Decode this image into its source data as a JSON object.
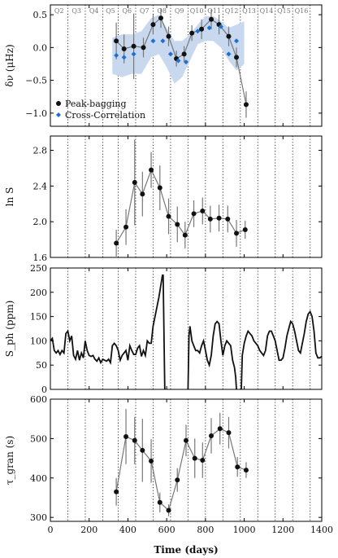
{
  "figure": {
    "xlabel_html": "Time (days)",
    "x_ticks": [
      0,
      200,
      400,
      600,
      800,
      1000,
      1200,
      1400
    ]
  },
  "quarters": {
    "labels": [
      "Q2",
      "Q3",
      "Q4",
      "Q5",
      "Q6",
      "Q7",
      "Q8",
      "Q9",
      "Q10",
      "Q11",
      "Q12",
      "Q13",
      "Q14",
      "Q15",
      "Q16"
    ],
    "boundaries": [
      0,
      90,
      180,
      270,
      350,
      440,
      530,
      620,
      710,
      800,
      890,
      980,
      1070,
      1160,
      1250,
      1340
    ]
  },
  "colors": {
    "peak": "#111111",
    "line": "#777777",
    "cc": "#1f6fcf",
    "band": "#c8d8ef",
    "grid": "#222222"
  },
  "chart_data": [
    {
      "type": "scatter",
      "id": "dnu",
      "ylabel": "δν (μHz)",
      "ylim": [
        -1.2,
        0.65
      ],
      "yticks": [
        -1.0,
        -0.5,
        0.0,
        0.5
      ],
      "ytick_labels": [
        "−1.0",
        "−0.5",
        "0.0",
        "0.5"
      ],
      "legend": {
        "position": "lower-left",
        "entries": [
          "Peak-bagging",
          "Cross-Correlation"
        ]
      },
      "series": [
        {
          "name": "Peak-bagging",
          "x": [
            340,
            380,
            430,
            480,
            530,
            570,
            610,
            650,
            690,
            730,
            780,
            830,
            870,
            920,
            960,
            1010
          ],
          "y": [
            0.1,
            -0.02,
            0.02,
            0.0,
            0.35,
            0.45,
            0.17,
            -0.17,
            -0.1,
            0.22,
            0.28,
            0.43,
            0.35,
            0.17,
            -0.15,
            -0.87
          ],
          "yerr": [
            0.28,
            0.22,
            0.5,
            0.15,
            0.15,
            0.15,
            0.15,
            0.12,
            0.12,
            0.12,
            0.15,
            0.15,
            0.15,
            0.15,
            0.15,
            0.2
          ]
        },
        {
          "name": "Cross-Correlation",
          "x": [
            340,
            380,
            430,
            530,
            580,
            620,
            660,
            700,
            760,
            820,
            880,
            920,
            960
          ],
          "y": [
            -0.12,
            -0.15,
            -0.1,
            0.1,
            0.1,
            -0.1,
            -0.2,
            -0.22,
            0.25,
            0.3,
            0.32,
            -0.1,
            0.1
          ],
          "band_x": [
            320,
            370,
            420,
            470,
            520,
            560,
            600,
            640,
            680,
            720,
            760,
            800,
            840,
            880,
            920,
            960,
            1000
          ],
          "band_lo": [
            -0.4,
            -0.45,
            -0.4,
            -0.4,
            -0.15,
            -0.1,
            -0.3,
            -0.55,
            -0.45,
            -0.2,
            0.05,
            0.1,
            0.1,
            0.0,
            -0.2,
            -0.35,
            -0.25
          ],
          "band_hi": [
            0.15,
            0.2,
            0.2,
            0.25,
            0.45,
            0.5,
            0.3,
            0.1,
            0.1,
            0.2,
            0.35,
            0.48,
            0.48,
            0.4,
            0.3,
            0.35,
            0.4
          ]
        }
      ]
    },
    {
      "type": "scatter",
      "id": "lnS",
      "ylabel": "ln S",
      "ylim": [
        1.6,
        2.96
      ],
      "yticks": [
        1.6,
        2.0,
        2.4,
        2.8
      ],
      "ytick_labels": [
        "1.6",
        "2.0",
        "2.4",
        "2.8"
      ],
      "series": [
        {
          "name": "Peak-bagging",
          "x": [
            340,
            390,
            435,
            475,
            520,
            565,
            610,
            655,
            695,
            740,
            785,
            825,
            870,
            915,
            960,
            1005
          ],
          "y": [
            1.76,
            1.94,
            2.44,
            2.31,
            2.58,
            2.38,
            2.06,
            1.97,
            1.85,
            2.09,
            2.12,
            2.03,
            2.04,
            2.03,
            1.87,
            1.91
          ],
          "yerr": [
            0.15,
            0.2,
            0.48,
            0.25,
            0.2,
            0.25,
            0.2,
            0.2,
            0.15,
            0.15,
            0.15,
            0.15,
            0.15,
            0.15,
            0.15,
            0.1
          ]
        }
      ]
    },
    {
      "type": "line",
      "id": "sph",
      "ylabel": "S_ph (ppm)",
      "ylim": [
        0,
        250
      ],
      "yticks": [
        0,
        50,
        100,
        150,
        200,
        250
      ],
      "ytick_labels": [
        "0",
        "50",
        "100",
        "150",
        "200",
        "250"
      ],
      "series": [
        {
          "name": "S_ph",
          "segments": [
            {
              "x": [
                0,
                10,
                20,
                30,
                40,
                50,
                60,
                70,
                80,
                90,
                100,
                110,
                120,
                130,
                140,
                150,
                160,
                170,
                180,
                190,
                200,
                210,
                220,
                230,
                240,
                250,
                260,
                270,
                280,
                290,
                300,
                310,
                320,
                330,
                340,
                350,
                360,
                370,
                380,
                390,
                400,
                410,
                420,
                430,
                440,
                450,
                460,
                470,
                480,
                490,
                500,
                510,
                520,
                530,
                540,
                550,
                560,
                570,
                578,
                582,
                590
              ],
              "y": [
                100,
                105,
                80,
                75,
                80,
                72,
                80,
                75,
                115,
                120,
                100,
                110,
                70,
                62,
                80,
                60,
                75,
                65,
                100,
                80,
                70,
                68,
                70,
                62,
                58,
                65,
                55,
                62,
                60,
                58,
                62,
                55,
                90,
                95,
                90,
                80,
                60,
                70,
                75,
                80,
                60,
                90,
                80,
                72,
                72,
                85,
                90,
                68,
                80,
                70,
                100,
                95,
                95,
                130,
                150,
                170,
                190,
                215,
                235,
                235,
                0
              ]
            },
            {
              "x": [
                710,
                715,
                720,
                730,
                740,
                750,
                760,
                770,
                780,
                790,
                800,
                810,
                820,
                830,
                840,
                850,
                860,
                870,
                880,
                890,
                900,
                910,
                920,
                930,
                940,
                950,
                956,
                960
              ],
              "y": [
                0,
                110,
                130,
                100,
                90,
                80,
                80,
                75,
                90,
                100,
                80,
                60,
                50,
                70,
                110,
                135,
                140,
                135,
                100,
                70,
                90,
                100,
                95,
                90,
                60,
                45,
                25,
                0
              ]
            },
            {
              "x": [
                985,
                990,
                1000,
                1010,
                1020,
                1030,
                1040,
                1050,
                1060,
                1070,
                1080,
                1090,
                1100,
                1110,
                1120,
                1130,
                1140,
                1150,
                1160,
                1170,
                1180,
                1190,
                1200,
                1210,
                1220,
                1230,
                1240,
                1250,
                1260,
                1270,
                1280,
                1290,
                1300,
                1310,
                1320,
                1330,
                1340,
                1350,
                1360,
                1370,
                1380,
                1390,
                1400
              ],
              "y": [
                0,
                70,
                95,
                110,
                120,
                115,
                110,
                100,
                95,
                90,
                80,
                75,
                70,
                80,
                110,
                120,
                120,
                110,
                100,
                80,
                60,
                60,
                65,
                85,
                110,
                125,
                140,
                135,
                120,
                100,
                80,
                75,
                95,
                115,
                140,
                155,
                160,
                150,
                120,
                75,
                65,
                65,
                68
              ]
            }
          ]
        }
      ]
    },
    {
      "type": "scatter",
      "id": "tau",
      "ylabel": "τ_gran (s)",
      "ylim": [
        290,
        600
      ],
      "yticks": [
        300,
        400,
        500,
        600
      ],
      "ytick_labels": [
        "300",
        "400",
        "500",
        "600"
      ],
      "series": [
        {
          "name": "Peak-bagging",
          "x": [
            340,
            390,
            435,
            475,
            520,
            565,
            610,
            655,
            700,
            745,
            785,
            830,
            875,
            920,
            965,
            1010
          ],
          "y": [
            365,
            505,
            495,
            470,
            443,
            338,
            318,
            395,
            495,
            450,
            445,
            507,
            525,
            515,
            428,
            420
          ],
          "yerr": [
            35,
            70,
            60,
            80,
            55,
            25,
            15,
            30,
            40,
            50,
            45,
            45,
            40,
            40,
            25,
            20
          ]
        }
      ]
    }
  ]
}
